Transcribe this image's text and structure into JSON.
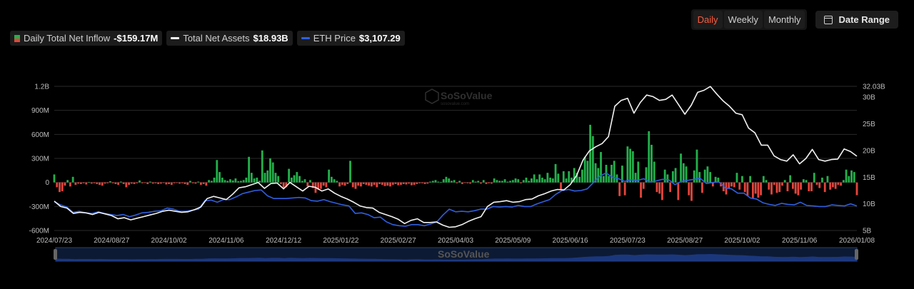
{
  "toolbar": {
    "periods": [
      "Daily",
      "Weekly",
      "Monthly"
    ],
    "active_period": "Daily",
    "date_range_label": "Date Range"
  },
  "legend": {
    "inflow": {
      "label": "Daily Total Net Inflow",
      "value": "-$159.17M"
    },
    "assets": {
      "label": "Total Net Assets",
      "value": "$18.93B"
    },
    "price": {
      "label": "ETH Price",
      "value": "$3,107.29"
    }
  },
  "watermark": {
    "brand": "SoSoValue",
    "sub": "sosovalue.com"
  },
  "colors": {
    "positive": "#22b14c",
    "negative": "#e5453c",
    "assets_line": "#f2f2f2",
    "price_line": "#2f5fe0",
    "accent_active": "#ff5a3c",
    "grid": "#2a2a2a"
  },
  "chart_data": {
    "type": "bar",
    "x_axis": {
      "tick_labels": [
        "2024/07/23",
        "2024/08/27",
        "2024/10/02",
        "2024/11/06",
        "2024/12/12",
        "2025/01/22",
        "2025/02/27",
        "2025/04/03",
        "2025/05/09",
        "2025/06/16",
        "2025/07/23",
        "2025/08/27",
        "2025/10/02",
        "2025/11/06",
        "2026/01/08"
      ]
    },
    "y_left": {
      "ticks": [
        1200,
        900,
        600,
        300,
        0,
        -300,
        -600
      ],
      "tick_labels": [
        "1.2B",
        "900M",
        "600M",
        "300M",
        "0",
        "-300M",
        "-600M"
      ],
      "range": [
        -600,
        1200
      ],
      "unit": "M"
    },
    "y_right": {
      "ticks": [
        32.03,
        30,
        25,
        20,
        15,
        10,
        5
      ],
      "tick_labels": [
        "32.03B",
        "30B",
        "25B",
        "20B",
        "15B",
        "10B",
        "5B"
      ],
      "range": [
        5,
        32.03
      ],
      "unit": "B"
    },
    "grid": true,
    "series": [
      {
        "key": "inflow",
        "type": "bar",
        "unit": "M",
        "values": [
          100,
          -60,
          -120,
          -110,
          -40,
          30,
          -50,
          70,
          -30,
          -15,
          -20,
          -10,
          -25,
          5,
          -15,
          -10,
          -20,
          -30,
          -40,
          -15,
          -10,
          15,
          -10,
          -20,
          -30,
          10,
          -20,
          -60,
          -30,
          -15,
          -20,
          -10,
          25,
          -10,
          -5,
          -20,
          10,
          -15,
          -10,
          -20,
          -15,
          -5,
          -25,
          -20,
          -30,
          -10,
          -5,
          -15,
          -10,
          -20,
          -30,
          20,
          -10,
          -15,
          10,
          -30,
          -20,
          -40,
          30,
          20,
          60,
          280,
          130,
          60,
          30,
          20,
          40,
          25,
          50,
          15,
          20,
          30,
          60,
          320,
          120,
          50,
          60,
          20,
          400,
          120,
          150,
          300,
          250,
          120,
          80,
          -20,
          -70,
          -60,
          170,
          60,
          90,
          130,
          80,
          20,
          40,
          -50,
          30,
          -70,
          -130,
          -90,
          -80,
          -40,
          -60,
          160,
          70,
          40,
          20,
          -50,
          -30,
          -40,
          -20,
          270,
          -60,
          -80,
          -40,
          -50,
          -20,
          -30,
          -40,
          -50,
          -30,
          -60,
          -20,
          -30,
          -45,
          -40,
          -50,
          -30,
          -20,
          -35,
          -30,
          -20,
          -25,
          -15,
          -35,
          -30,
          -20,
          -10,
          -10,
          -20,
          -15,
          10,
          20,
          30,
          10,
          5,
          40,
          70,
          50,
          20,
          30,
          -10,
          20,
          -20,
          -5,
          -10,
          -15,
          30,
          10,
          20,
          -15,
          30,
          -20,
          -10,
          -15,
          50,
          30,
          20,
          20,
          40,
          10,
          20,
          30,
          50,
          40,
          -10,
          30,
          60,
          20,
          50,
          100,
          40,
          100,
          60,
          40,
          120,
          60,
          50,
          230,
          110,
          -90,
          140,
          50,
          140,
          60,
          180,
          120,
          70,
          160,
          320,
          270,
          720,
          580,
          240,
          180,
          380,
          80,
          220,
          80,
          220,
          270,
          100,
          -170,
          210,
          -160,
          450,
          420,
          390,
          120,
          260,
          -190,
          -80,
          190,
          640,
          470,
          260,
          -120,
          -140,
          -220,
          160,
          100,
          -120,
          140,
          180,
          -220,
          360,
          240,
          200,
          -160,
          -230,
          150,
          410,
          130,
          -130,
          160,
          200,
          130,
          -50,
          70,
          60,
          -50,
          -110,
          -150,
          -80,
          -50,
          -60,
          120,
          -90,
          80,
          -120,
          -170,
          80,
          -200,
          -140,
          -190,
          -160,
          80,
          30,
          -90,
          -150,
          -30,
          -130,
          -120,
          -40,
          30,
          -110,
          90,
          -80,
          -140,
          -160,
          -90,
          40,
          30,
          -110,
          -110,
          120,
          -30,
          -70,
          60,
          -120,
          80,
          -90,
          -60,
          -80,
          -30,
          -40,
          30,
          160,
          80,
          150,
          130,
          -159.17
        ]
      },
      {
        "key": "assets",
        "type": "line",
        "unit": "B",
        "values": [
          10.5,
          9.5,
          9.2,
          8.2,
          8.4,
          8.3,
          8.0,
          8.4,
          8.1,
          7.8,
          7.2,
          7.4,
          7.0,
          7.3,
          7.6,
          7.9,
          8.2,
          8.6,
          8.8,
          8.6,
          8.4,
          8.5,
          8.9,
          9.4,
          11.0,
          11.4,
          11.1,
          10.8,
          11.8,
          13.0,
          13.2,
          13.6,
          14.0,
          12.9,
          13.8,
          13.9,
          12.8,
          14.0,
          13.2,
          12.4,
          13.3,
          13.1,
          12.4,
          12.8,
          12.0,
          11.4,
          10.9,
          10.3,
          9.6,
          9.3,
          9.2,
          8.4,
          8.0,
          7.6,
          7.1,
          6.3,
          6.9,
          7.2,
          6.5,
          6.5,
          6.6,
          6.0,
          5.6,
          5.7,
          6.1,
          6.7,
          7.2,
          7.6,
          9.5,
          10.3,
          10.4,
          10.6,
          10.3,
          10.4,
          10.8,
          10.9,
          11.5,
          11.9,
          12.4,
          12.7,
          12.6,
          13.6,
          15.3,
          18.2,
          19.9,
          20.7,
          21.3,
          22.6,
          28.3,
          29.4,
          29.8,
          27.0,
          29.0,
          30.4,
          30.1,
          29.4,
          29.6,
          30.4,
          28.6,
          26.8,
          28.5,
          30.9,
          31.3,
          32.0,
          30.6,
          29.3,
          28.3,
          27.0,
          26.7,
          24.2,
          23.3,
          21.0,
          21.0,
          19.0,
          18.3,
          18.0,
          19.2,
          17.5,
          18.5,
          20.2,
          18.3,
          18.0,
          18.3,
          18.4,
          20.3,
          19.8,
          18.93
        ]
      },
      {
        "key": "price",
        "type": "line",
        "unit": "B",
        "values": [
          10.4,
          9.8,
          9.4,
          8.4,
          8.6,
          8.3,
          8.2,
          8.5,
          8.2,
          8.0,
          7.8,
          8.0,
          7.6,
          7.9,
          8.3,
          8.4,
          8.6,
          8.7,
          9.2,
          9.0,
          8.6,
          8.6,
          8.8,
          9.0,
          10.6,
          10.7,
          10.3,
          10.8,
          10.8,
          11.3,
          11.9,
          12.2,
          12.5,
          12.6,
          11.5,
          11.0,
          11.0,
          11.0,
          11.1,
          11.2,
          11.1,
          10.6,
          10.5,
          10.8,
          10.4,
          10.1,
          9.8,
          9.6,
          8.2,
          8.3,
          8.0,
          7.4,
          7.5,
          6.6,
          6.1,
          5.9,
          5.8,
          6.1,
          6.1,
          5.9,
          6.2,
          6.6,
          7.9,
          9.0,
          8.5,
          8.6,
          8.5,
          8.7,
          9.0,
          9.0,
          9.5,
          9.4,
          9.5,
          9.4,
          9.7,
          9.5,
          9.5,
          10.0,
          10.4,
          10.8,
          11.8,
          12.5,
          12.7,
          12.4,
          12.5,
          12.8,
          14.0,
          15.2,
          15.8,
          15.0,
          14.7,
          14.2,
          14.5,
          14.4,
          14.7,
          14.1,
          14.3,
          14.6,
          14.5,
          13.6,
          14.2,
          14.4,
          14.6,
          14.8,
          13.8,
          14.0,
          14.1,
          13.0,
          12.8,
          12.0,
          12.0,
          11.1,
          10.9,
          10.2,
          9.9,
          9.7,
          10.1,
          9.9,
          9.8,
          10.3,
          9.7,
          9.6,
          9.5,
          9.5,
          9.8,
          9.7,
          9.6,
          10.0,
          9.6
        ]
      }
    ]
  }
}
